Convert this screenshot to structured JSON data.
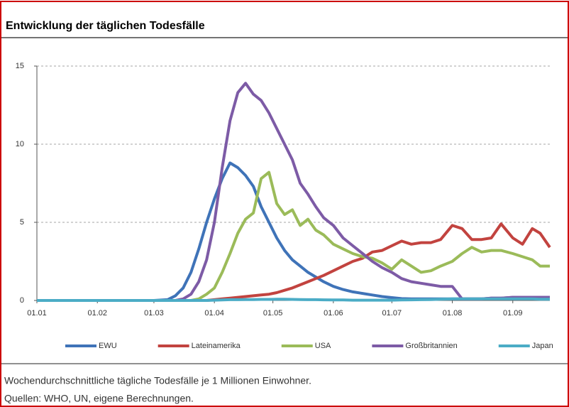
{
  "chart_data": {
    "type": "line",
    "title": "Entwicklung der täglichen Todesfälle",
    "notes": [
      "Wochendurchschnittliche tägliche Todesfälle je 1 Millionen Einwohner.",
      "Quellen: WHO, UN, eigene Berechnungen."
    ],
    "x": [
      "01.01",
      "01.02",
      "01.03",
      "08.03",
      "12.03",
      "16.03",
      "20.03",
      "24.03",
      "28.03",
      "01.04",
      "05.04",
      "09.04",
      "13.04",
      "17.04",
      "21.04",
      "25.04",
      "29.04",
      "03.05",
      "07.05",
      "11.05",
      "15.05",
      "19.05",
      "23.05",
      "27.05",
      "01.06",
      "06.06",
      "11.06",
      "16.06",
      "21.06",
      "26.06",
      "01.07",
      "06.07",
      "11.07",
      "16.07",
      "21.07",
      "26.07",
      "01.08",
      "06.08",
      "11.08",
      "16.08",
      "21.08",
      "26.08",
      "01.09",
      "06.09",
      "11.09",
      "15.09",
      "20.09"
    ],
    "xlim": [
      "01.01",
      "20.09"
    ],
    "xticks": [
      "01.01",
      "01.02",
      "01.03",
      "01.04",
      "01.05",
      "01.06",
      "01.07",
      "01.08",
      "01.09"
    ],
    "ylim": [
      0,
      15
    ],
    "yticks": [
      0,
      5,
      10,
      15
    ],
    "grid": true,
    "series": [
      {
        "name": "EWU",
        "color": "#3f73b8",
        "values": [
          0,
          0,
          0,
          0.05,
          0.3,
          0.8,
          1.8,
          3.3,
          5,
          6.5,
          7.8,
          8.8,
          8.5,
          8,
          7.3,
          6,
          5,
          4,
          3.2,
          2.6,
          2.2,
          1.8,
          1.5,
          1.2,
          0.9,
          0.7,
          0.55,
          0.45,
          0.35,
          0.25,
          0.18,
          0.12,
          0.1,
          0.1,
          0.1,
          0.1,
          0.1,
          0.1,
          0.1,
          0.1,
          0.15,
          0.15,
          0.2,
          0.2,
          0.2,
          0.2,
          0.2
        ]
      },
      {
        "name": "Lateinamerika",
        "color": "#c2433f",
        "values": [
          0,
          0,
          0,
          0,
          0,
          0,
          0,
          0,
          0,
          0.05,
          0.1,
          0.15,
          0.2,
          0.25,
          0.3,
          0.35,
          0.4,
          0.5,
          0.65,
          0.8,
          1,
          1.2,
          1.4,
          1.6,
          1.9,
          2.2,
          2.5,
          2.7,
          3.1,
          3.2,
          3.5,
          3.8,
          3.6,
          3.7,
          3.7,
          3.9,
          4.8,
          4.6,
          3.9,
          3.9,
          4,
          4.9,
          4,
          3.6,
          4.6,
          4.3,
          3.4
        ]
      },
      {
        "name": "USA",
        "color": "#9bbb59",
        "values": [
          0,
          0,
          0,
          0,
          0,
          0,
          0,
          0.1,
          0.4,
          0.8,
          1.8,
          3,
          4.3,
          5.2,
          5.6,
          7.8,
          8.2,
          6.2,
          5.5,
          5.8,
          4.8,
          5.2,
          4.5,
          4.2,
          3.6,
          3.3,
          3,
          2.8,
          2.7,
          2.4,
          2,
          2.6,
          2.2,
          1.8,
          1.9,
          2.2,
          2.5,
          3,
          3.4,
          3.1,
          3.2,
          3.2,
          3,
          2.8,
          2.6,
          2.2,
          2.2
        ]
      },
      {
        "name": "Großbritannien",
        "color": "#7d5ba6",
        "values": [
          0,
          0,
          0,
          0,
          0,
          0.1,
          0.4,
          1.2,
          2.6,
          5,
          8.5,
          11.5,
          13.3,
          13.9,
          13.2,
          12.8,
          12,
          11,
          10,
          9,
          7.5,
          6.8,
          6,
          5.3,
          4.8,
          4,
          3.5,
          3,
          2.5,
          2.1,
          1.8,
          1.4,
          1.2,
          1.1,
          1,
          0.9,
          0.9,
          0.1,
          0.1,
          0.1,
          0.15,
          0.15,
          0.2,
          0.2,
          0.2,
          0.2,
          0.2
        ]
      },
      {
        "name": "Japan",
        "color": "#4bacc6",
        "values": [
          0,
          0,
          0,
          0,
          0,
          0,
          0,
          0,
          0,
          0.02,
          0.03,
          0.05,
          0.05,
          0.06,
          0.06,
          0.07,
          0.07,
          0.08,
          0.08,
          0.07,
          0.06,
          0.05,
          0.05,
          0.04,
          0.03,
          0.03,
          0.02,
          0.02,
          0.02,
          0.02,
          0.02,
          0.03,
          0.04,
          0.05,
          0.06,
          0.08,
          0.1,
          0.1,
          0.1,
          0.1,
          0.1,
          0.1,
          0.1,
          0.1,
          0.1,
          0.08,
          0.08
        ]
      }
    ]
  }
}
